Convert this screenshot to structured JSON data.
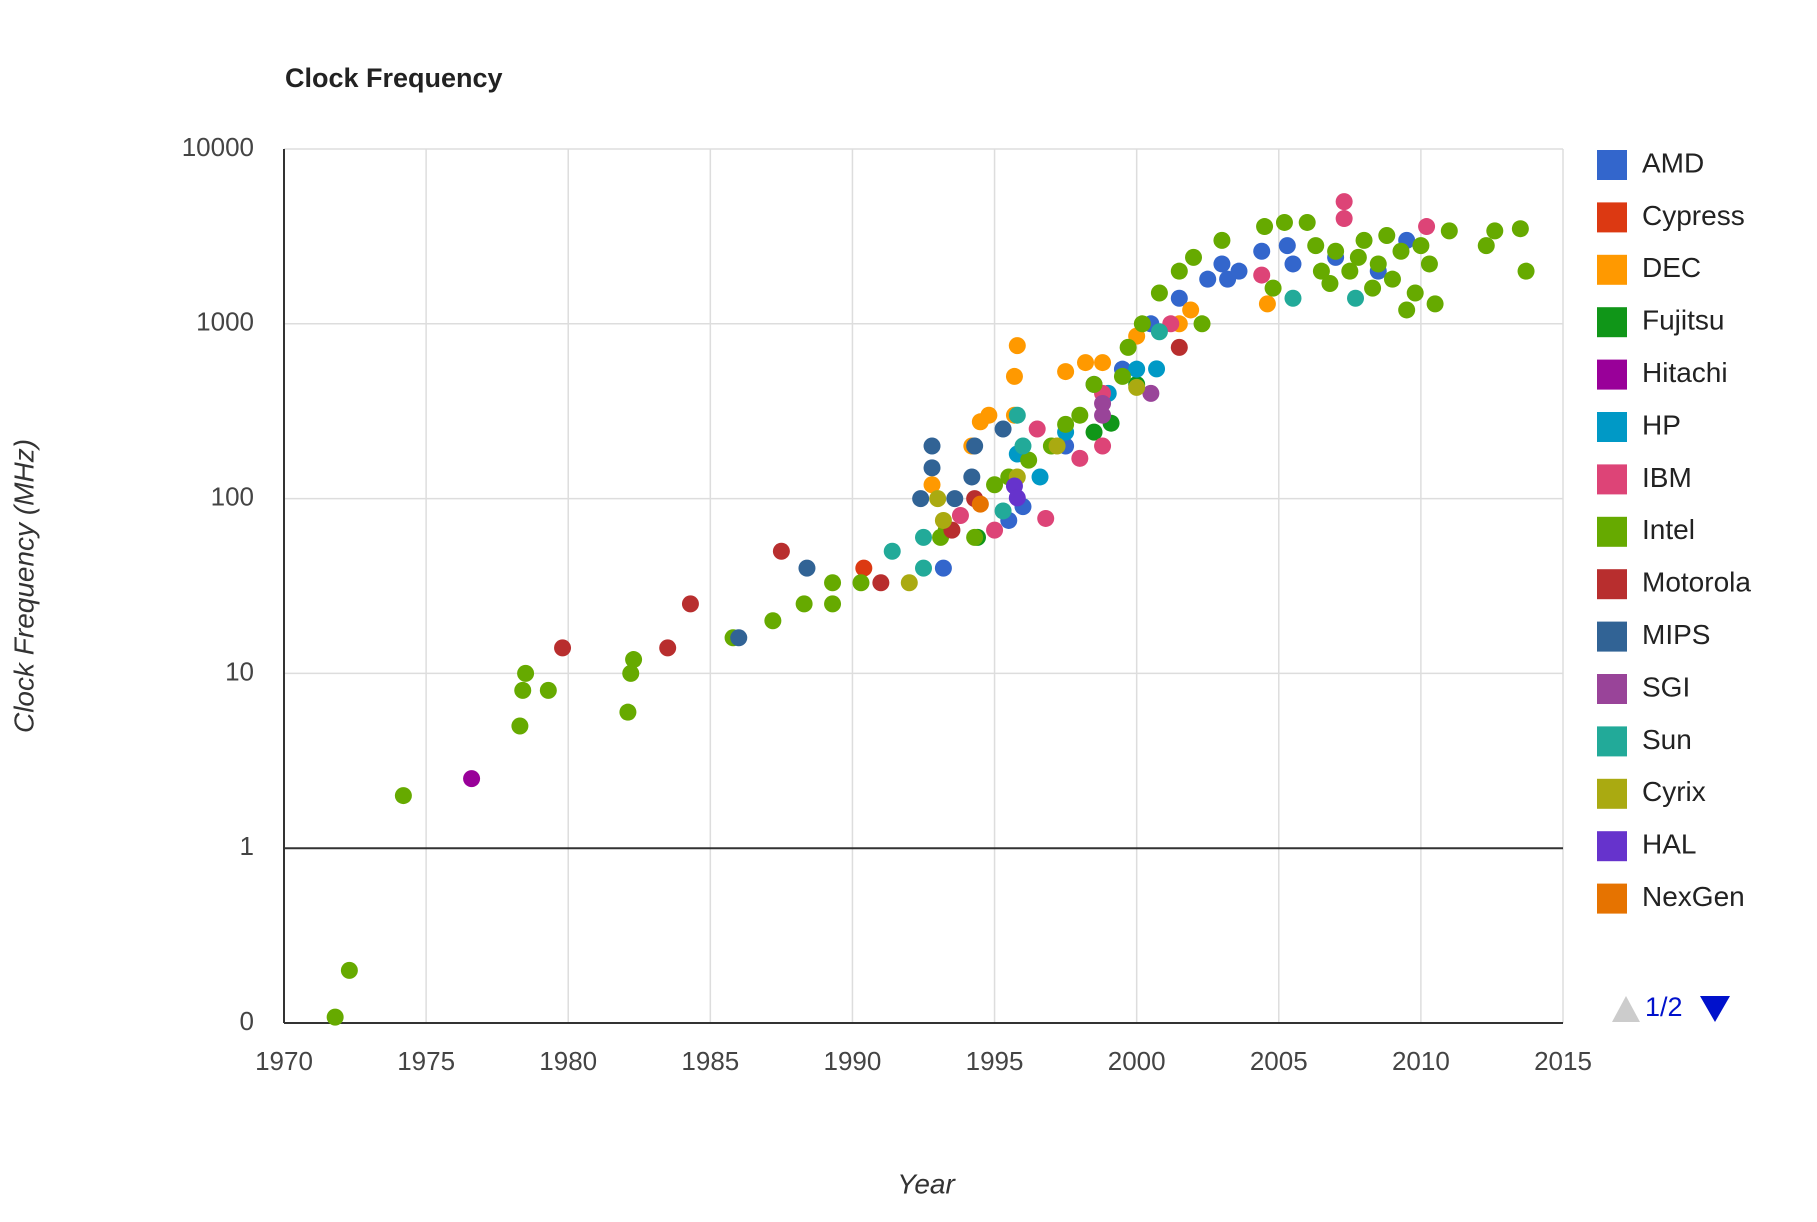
{
  "chart_data": {
    "type": "scatter",
    "title": "Clock Frequency",
    "x_label": "Year",
    "y_label": "Clock Frequency (MHz)",
    "log_y": true,
    "grid": true,
    "baseline": 1,
    "legend": "right",
    "legend_page": "1/2",
    "xlim": [
      1970,
      2015
    ],
    "xticks": [
      1970,
      1975,
      1980,
      1985,
      1990,
      1995,
      2000,
      2005,
      2010,
      2015
    ],
    "ylim": [
      0.1,
      10000
    ],
    "yticks": [
      {
        "value": 0.1,
        "label": "0"
      },
      1,
      10,
      100,
      1000,
      10000
    ],
    "series": [
      {
        "name": "AMD",
        "color": "#3366cc",
        "x": [
          1993.2,
          1995.5,
          1996,
          1997.5,
          1998.5,
          1999.5,
          2000.5,
          2001.5,
          2002.5,
          2003,
          2003.2,
          2003.6,
          2004.4,
          2005.3,
          2005.5,
          2007,
          2008.5,
          2009.5
        ],
        "values": [
          40,
          75,
          90,
          200,
          450,
          550,
          1000,
          1400,
          1800,
          2200,
          1800,
          2000,
          2600,
          2800,
          2200,
          2400,
          2000,
          3000
        ]
      },
      {
        "name": "Cypress",
        "color": "#dc3912",
        "x": [
          1990.4
        ],
        "values": [
          40
        ]
      },
      {
        "name": "DEC",
        "color": "#ff9900",
        "x": [
          1992.8,
          1994.2,
          1994.5,
          1994.8,
          1995.7,
          1995.7,
          1995.8,
          1997.5,
          1998.2,
          1998.8,
          2000,
          2001.5,
          2001.9,
          2004.6
        ],
        "values": [
          120,
          200,
          275,
          300,
          300,
          500,
          750,
          533,
          600,
          600,
          850,
          1000,
          1200,
          1300
        ]
      },
      {
        "name": "Fujitsu",
        "color": "#109618",
        "x": [
          1994.4,
          1998.5,
          1999.1,
          2000
        ],
        "values": [
          60,
          240,
          270,
          450
        ]
      },
      {
        "name": "Hitachi",
        "color": "#990099",
        "x": [
          1976.6
        ],
        "values": [
          2.5
        ]
      },
      {
        "name": "HP",
        "color": "#0099c6",
        "x": [
          1995.8,
          1996.6,
          1997.5,
          1999,
          2000,
          2000.7
        ],
        "values": [
          180,
          133,
          240,
          400,
          550,
          552
        ]
      },
      {
        "name": "IBM",
        "color": "#dd4477",
        "x": [
          1993.8,
          1995,
          1996.5,
          1996.8,
          1998,
          1998.8,
          1998.8,
          2001.2,
          2004.4,
          2007.3,
          2007.3,
          2010.2
        ],
        "values": [
          80,
          66,
          250,
          77,
          170,
          200,
          400,
          1000,
          1900,
          5000,
          4000,
          3600
        ]
      },
      {
        "name": "Intel",
        "color": "#66aa00",
        "x": [
          1971.8,
          1972.3,
          1974.2,
          1978.3,
          1978.4,
          1978.5,
          1979.3,
          1982.1,
          1982.2,
          1982.3,
          1985.8,
          1987.2,
          1988.3,
          1989.3,
          1989.3,
          1990.3,
          1993.1,
          1993.3,
          1994.3,
          1995,
          1995.5,
          1996.2,
          1997,
          1997.5,
          1998,
          1998.5,
          1999.5,
          1999.7,
          2000.2,
          2000.8,
          2001.5,
          2002,
          2002.3,
          2003,
          2004.5,
          2004.8,
          2005.2,
          2006,
          2006.5,
          2007,
          2007.5,
          2008,
          2008.5,
          2009,
          2009.5,
          2010,
          2010.5,
          2011,
          2012.3,
          2012.6,
          2013.5,
          2013.7,
          2006.3,
          2006.8,
          2007.8,
          2008.3,
          2008.8,
          2009.3,
          2009.8,
          2010.3
        ],
        "values": [
          0.108,
          0.2,
          2,
          5,
          8,
          10,
          8,
          6,
          10,
          12,
          16,
          20,
          25,
          25,
          33,
          33,
          60,
          66,
          60,
          120,
          133,
          166,
          200,
          266,
          300,
          450,
          500,
          733,
          1000,
          1500,
          2000,
          2400,
          1000,
          3000,
          3600,
          1600,
          3800,
          3800,
          2000,
          2600,
          2000,
          3000,
          2200,
          1800,
          1200,
          2800,
          1300,
          3400,
          2800,
          3400,
          3500,
          2000,
          2800,
          1700,
          2400,
          1600,
          3200,
          2600,
          1500,
          2200
        ]
      },
      {
        "name": "Motorola",
        "color": "#b82e2e",
        "x": [
          1979.8,
          1983.5,
          1984.3,
          1987.5,
          1991,
          1993.5,
          1994.3,
          2001.5
        ],
        "values": [
          14,
          14,
          25,
          50,
          33,
          66,
          100,
          733
        ]
      },
      {
        "name": "MIPS",
        "color": "#316395",
        "x": [
          1986,
          1988.4,
          1992.4,
          1992.8,
          1992.8,
          1994.2,
          1994.3,
          1995.3,
          1993.6
        ],
        "values": [
          16,
          40,
          100,
          150,
          200,
          133,
          200,
          250,
          100
        ]
      },
      {
        "name": "SGI",
        "color": "#994499",
        "x": [
          1998.8,
          1998.8,
          2000.5
        ],
        "values": [
          300,
          350,
          400
        ]
      },
      {
        "name": "Sun",
        "color": "#22aa99",
        "x": [
          1991.4,
          1992.5,
          1992.5,
          1995.3,
          1995.8,
          1996,
          2000.8,
          2005.5,
          2007.7
        ],
        "values": [
          50,
          40,
          60,
          85,
          300,
          200,
          900,
          1400,
          1400
        ]
      },
      {
        "name": "Cyrix",
        "color": "#aaaa11",
        "x": [
          1992,
          1993,
          1993.2,
          1995.8,
          1997.2,
          2000
        ],
        "values": [
          33,
          100,
          75,
          133,
          200,
          433
        ]
      },
      {
        "name": "HAL",
        "color": "#6633cc",
        "x": [
          1995.7,
          1995.8
        ],
        "values": [
          118,
          101
        ]
      },
      {
        "name": "NexGen",
        "color": "#e67300",
        "x": [
          1994.5
        ],
        "values": [
          93
        ]
      }
    ]
  }
}
